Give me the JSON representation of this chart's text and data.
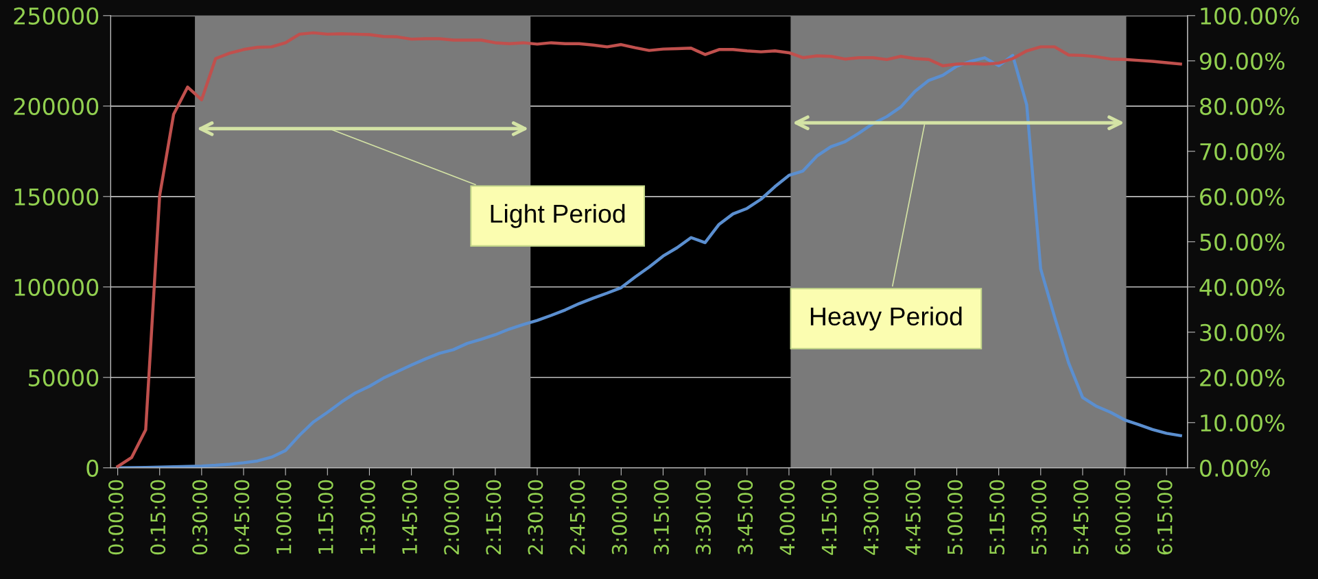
{
  "chart_data": {
    "type": "line",
    "x": [
      0,
      0.0833,
      0.1667,
      0.25,
      0.3333,
      0.4167,
      0.5,
      0.5833,
      0.6667,
      0.75,
      0.8333,
      0.9167,
      1,
      1.0833,
      1.1667,
      1.25,
      1.3333,
      1.4167,
      1.5,
      1.5833,
      1.6667,
      1.75,
      1.8333,
      1.9167,
      2,
      2.0833,
      2.1667,
      2.25,
      2.3333,
      2.4167,
      2.5,
      2.5833,
      2.6667,
      2.75,
      2.8333,
      2.9167,
      3,
      3.0833,
      3.1667,
      3.25,
      3.3333,
      3.4167,
      3.5,
      3.5833,
      3.6667,
      3.75,
      3.8333,
      3.9167,
      4,
      4.0833,
      4.1667,
      4.25,
      4.3333,
      4.4167,
      4.5,
      4.5833,
      4.6667,
      4.75,
      4.8333,
      4.9167,
      5,
      5.0833,
      5.1667,
      5.25,
      5.3333,
      5.4167,
      5.5,
      5.5833,
      5.6667,
      5.75,
      5.8333,
      5.9167,
      6,
      6.0833,
      6.1667,
      6.25,
      6.3333
    ],
    "series": [
      {
        "color": "#5b8fd0",
        "values": [
          0,
          100,
          200,
          400,
          600,
          800,
          1000,
          1400,
          2000,
          2800,
          3800,
          5900,
          9600,
          18000,
          25400,
          30700,
          36400,
          41400,
          45100,
          49600,
          53200,
          56800,
          60200,
          63300,
          65300,
          68800,
          71100,
          73600,
          76700,
          79200,
          81500,
          84300,
          87300,
          90800,
          93800,
          96600,
          99600,
          105500,
          111000,
          117100,
          121700,
          127300,
          124500,
          134600,
          140400,
          143400,
          148500,
          155500,
          161700,
          164100,
          172400,
          177500,
          180300,
          185000,
          190300,
          194200,
          199500,
          208100,
          214200,
          217000,
          222000,
          224800,
          226700,
          222300,
          228000,
          200700,
          110000,
          83300,
          58000,
          38900,
          34000,
          30700,
          26500,
          23900,
          21200,
          19100,
          17800
        ]
      },
      {
        "color": "#c0504d",
        "axis": "y2",
        "values": [
          0.3,
          2.3,
          8.4,
          60.2,
          78.2,
          84.2,
          81.4,
          90.5,
          91.7,
          92.5,
          93.0,
          93.1,
          94.0,
          95.9,
          96.2,
          95.9,
          96.0,
          95.9,
          95.8,
          95.4,
          95.3,
          94.8,
          94.9,
          94.9,
          94.6,
          94.6,
          94.6,
          94.0,
          93.8,
          94.0,
          93.7,
          94.0,
          93.8,
          93.8,
          93.5,
          93.1,
          93.6,
          92.9,
          92.3,
          92.6,
          92.7,
          92.8,
          91.4,
          92.5,
          92.5,
          92.2,
          92.0,
          92.2,
          91.8,
          90.7,
          91.1,
          91.0,
          90.4,
          90.7,
          90.7,
          90.3,
          91.0,
          90.5,
          90.3,
          88.9,
          89.3,
          89.4,
          89.3,
          89.5,
          90.5,
          92.2,
          93.1,
          93.1,
          91.3,
          91.2,
          90.9,
          90.4,
          90.3,
          90.1,
          89.9,
          89.6,
          89.3
        ]
      }
    ],
    "xlim": [
      -0.0417,
      6.375
    ],
    "xticks": [
      {
        "value": 0,
        "label": "0:00:00"
      },
      {
        "value": 0.25,
        "label": "0:15:00"
      },
      {
        "value": 0.5,
        "label": "0:30:00"
      },
      {
        "value": 0.75,
        "label": "0:45:00"
      },
      {
        "value": 1,
        "label": "1:00:00"
      },
      {
        "value": 1.25,
        "label": "1:15:00"
      },
      {
        "value": 1.5,
        "label": "1:30:00"
      },
      {
        "value": 1.75,
        "label": "1:45:00"
      },
      {
        "value": 2,
        "label": "2:00:00"
      },
      {
        "value": 2.25,
        "label": "2:15:00"
      },
      {
        "value": 2.5,
        "label": "2:30:00"
      },
      {
        "value": 2.75,
        "label": "2:45:00"
      },
      {
        "value": 3,
        "label": "3:00:00"
      },
      {
        "value": 3.25,
        "label": "3:15:00"
      },
      {
        "value": 3.5,
        "label": "3:30:00"
      },
      {
        "value": 3.75,
        "label": "3:45:00"
      },
      {
        "value": 4,
        "label": "4:00:00"
      },
      {
        "value": 4.25,
        "label": "4:15:00"
      },
      {
        "value": 4.5,
        "label": "4:30:00"
      },
      {
        "value": 4.75,
        "label": "4:45:00"
      },
      {
        "value": 5,
        "label": "5:00:00"
      },
      {
        "value": 5.25,
        "label": "5:15:00"
      },
      {
        "value": 5.5,
        "label": "5:30:00"
      },
      {
        "value": 5.75,
        "label": "5:45:00"
      },
      {
        "value": 6,
        "label": "6:00:00"
      },
      {
        "value": 6.25,
        "label": "6:15:00"
      }
    ],
    "ylim": [
      0,
      250000
    ],
    "yticks": [
      0,
      50000,
      100000,
      150000,
      200000,
      250000
    ],
    "y2lim": [
      0,
      100
    ],
    "y2ticks": [
      {
        "value": 0,
        "label": "0.00%"
      },
      {
        "value": 10,
        "label": "10.00%"
      },
      {
        "value": 20,
        "label": "20.00%"
      },
      {
        "value": 30,
        "label": "30.00%"
      },
      {
        "value": 40,
        "label": "40.00%"
      },
      {
        "value": 50,
        "label": "50.00%"
      },
      {
        "value": 60,
        "label": "60.00%"
      },
      {
        "value": 70,
        "label": "70.00%"
      },
      {
        "value": 80,
        "label": "80.00%"
      },
      {
        "value": 90,
        "label": "90.00%"
      },
      {
        "value": 100,
        "label": "100.00%"
      }
    ],
    "bands": [
      {
        "axis": "x",
        "from": 0.46,
        "to": 2.46,
        "label": "Light Period",
        "color": "#7a7a7a"
      },
      {
        "axis": "x",
        "from": 4.01,
        "to": 6.01,
        "label": "Heavy Period",
        "color": "#7a7a7a"
      }
    ],
    "grid": "y",
    "marker": "none",
    "line_style": "solid"
  }
}
